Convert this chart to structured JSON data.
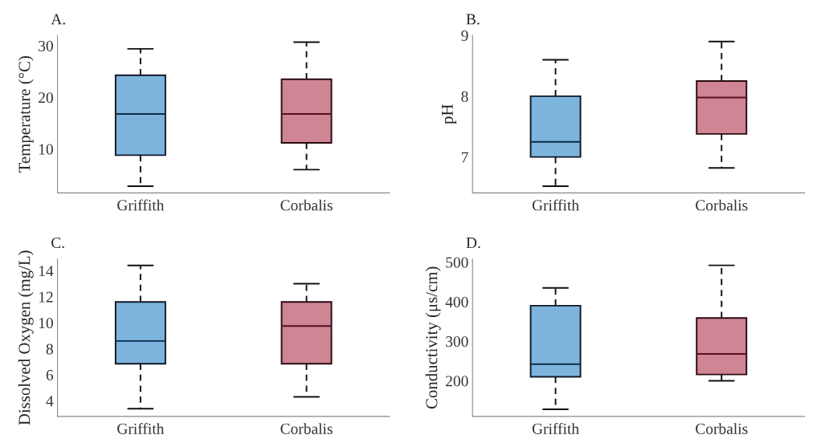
{
  "chart_data": [
    {
      "type": "box",
      "title": "A.",
      "ylabel": "Temperature (°C)",
      "categories": [
        "Griffith",
        "Corbalis"
      ],
      "colors": [
        "#7db4de",
        "#d08594"
      ],
      "ylim": [
        1.5,
        32
      ],
      "yticks": [
        10,
        20,
        30
      ],
      "grid": false,
      "boxes": [
        {
          "low": 2.8,
          "q1": 8.8,
          "median": 16.8,
          "q3": 24.3,
          "high": 29.4
        },
        {
          "low": 6.0,
          "q1": 11.2,
          "median": 16.8,
          "q3": 23.5,
          "high": 30.7
        }
      ]
    },
    {
      "type": "box",
      "title": "B.",
      "ylabel": "pH",
      "categories": [
        "Griffith",
        "Corbalis"
      ],
      "colors": [
        "#7db4de",
        "#d08594"
      ],
      "ylim": [
        6.41,
        9.0
      ],
      "yticks": [
        7,
        8,
        9
      ],
      "grid": false,
      "boxes": [
        {
          "low": 6.52,
          "q1": 7.0,
          "median": 7.25,
          "q3": 8.0,
          "high": 8.6
        },
        {
          "low": 6.82,
          "q1": 7.38,
          "median": 7.98,
          "q3": 8.25,
          "high": 8.9
        }
      ]
    },
    {
      "type": "box",
      "title": "C.",
      "ylabel": "Dissolved Oxygen (mg/L)",
      "categories": [
        "Griffith",
        "Corbalis"
      ],
      "colors": [
        "#7db4de",
        "#d08594"
      ],
      "ylim": [
        2.8,
        14.9
      ],
      "yticks": [
        4,
        6,
        8,
        10,
        12,
        14
      ],
      "grid": false,
      "boxes": [
        {
          "low": 3.4,
          "q1": 6.85,
          "median": 8.6,
          "q3": 11.6,
          "high": 14.4
        },
        {
          "low": 4.3,
          "q1": 6.85,
          "median": 9.75,
          "q3": 11.6,
          "high": 13.0
        }
      ]
    },
    {
      "type": "box",
      "title": "D.",
      "ylabel": "Conductivity (μs/cm)",
      "categories": [
        "Griffith",
        "Corbalis"
      ],
      "colors": [
        "#7db4de",
        "#d08594"
      ],
      "ylim": [
        110,
        508
      ],
      "yticks": [
        200,
        300,
        400,
        500
      ],
      "grid": false,
      "boxes": [
        {
          "low": 128,
          "q1": 210,
          "median": 242,
          "q3": 390,
          "high": 435
        },
        {
          "low": 200,
          "q1": 216,
          "median": 268,
          "q3": 359,
          "high": 492
        }
      ]
    }
  ]
}
